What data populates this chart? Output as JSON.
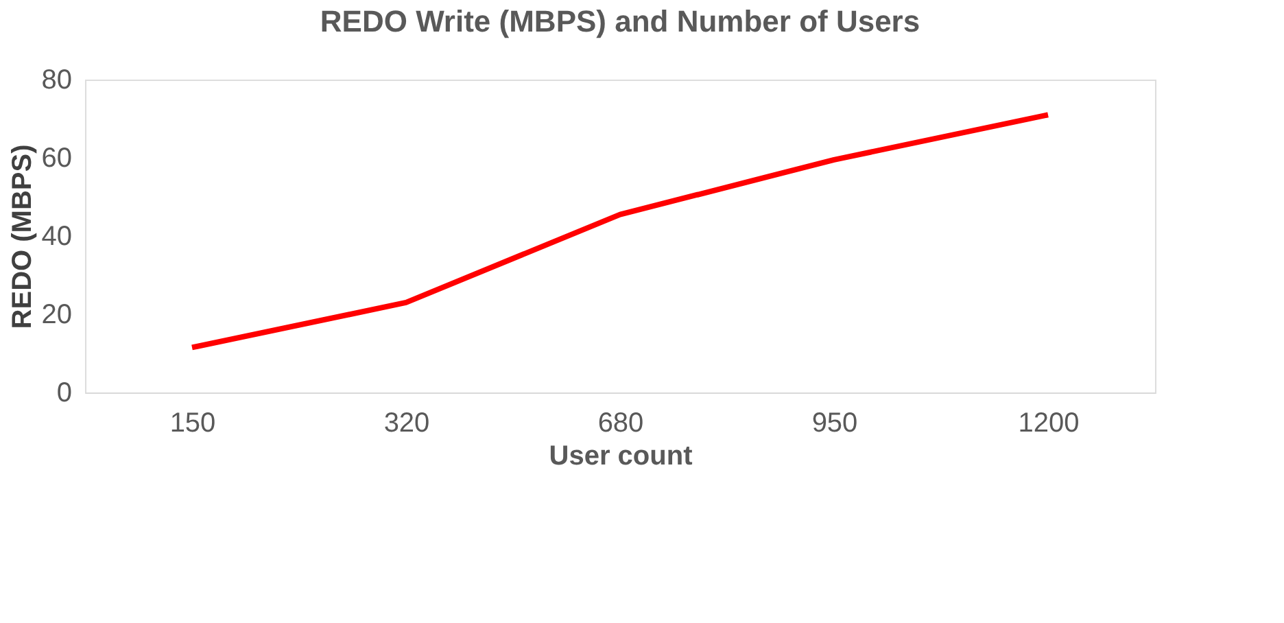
{
  "chart_data": {
    "type": "line",
    "title": "REDO Write (MBPS) and Number of Users",
    "xlabel": "User count",
    "ylabel": "REDO (MBPS)",
    "categories": [
      "150",
      "320",
      "680",
      "950",
      "1200"
    ],
    "series": [
      {
        "color": "#ff0000",
        "values": [
          11.5,
          23,
          45.5,
          59.5,
          71
        ]
      }
    ],
    "ylim": [
      0,
      80
    ],
    "yticks": [
      0,
      20,
      40,
      60,
      80
    ],
    "grid": false,
    "legend": false,
    "marker": "none",
    "line_style": "solid"
  }
}
